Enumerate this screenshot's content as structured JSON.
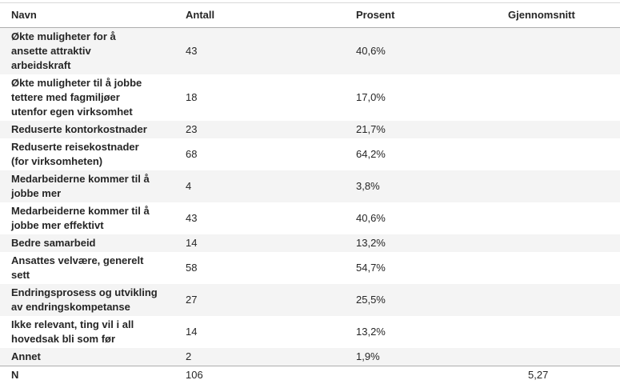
{
  "table": {
    "columns": [
      {
        "key": "navn",
        "label": "Navn"
      },
      {
        "key": "antall",
        "label": "Antall"
      },
      {
        "key": "prosent",
        "label": "Prosent"
      },
      {
        "key": "gjennomsnitt",
        "label": "Gjennomsnitt"
      }
    ],
    "rows": [
      {
        "navn_lines": [
          "Økte muligheter for å",
          "ansette attraktiv",
          "arbeidskraft"
        ],
        "antall": "43",
        "prosent": "40,6%",
        "gjennomsnitt": ""
      },
      {
        "navn_lines": [
          "Økte muligheter til å jobbe",
          "tettere med fagmiljøer",
          "utenfor egen virksomhet"
        ],
        "antall": "18",
        "prosent": "17,0%",
        "gjennomsnitt": ""
      },
      {
        "navn_lines": [
          "Reduserte kontorkostnader"
        ],
        "antall": "23",
        "prosent": "21,7%",
        "gjennomsnitt": ""
      },
      {
        "navn_lines": [
          "Reduserte reisekostnader",
          "(for virksomheten)"
        ],
        "antall": "68",
        "prosent": "64,2%",
        "gjennomsnitt": ""
      },
      {
        "navn_lines": [
          "Medarbeiderne kommer til å",
          "jobbe mer"
        ],
        "antall": "4",
        "prosent": "3,8%",
        "gjennomsnitt": ""
      },
      {
        "navn_lines": [
          "Medarbeiderne kommer til å",
          "jobbe mer effektivt"
        ],
        "antall": "43",
        "prosent": "40,6%",
        "gjennomsnitt": ""
      },
      {
        "navn_lines": [
          "Bedre samarbeid"
        ],
        "antall": "14",
        "prosent": "13,2%",
        "gjennomsnitt": ""
      },
      {
        "navn_lines": [
          "Ansattes velvære, generelt",
          "sett"
        ],
        "antall": "58",
        "prosent": "54,7%",
        "gjennomsnitt": ""
      },
      {
        "navn_lines": [
          "Endringsprosess og utvikling",
          "av endringskompetanse"
        ],
        "antall": "27",
        "prosent": "25,5%",
        "gjennomsnitt": ""
      },
      {
        "navn_lines": [
          "Ikke relevant, ting vil i all",
          "hovedsak bli som før"
        ],
        "antall": "14",
        "prosent": "13,2%",
        "gjennomsnitt": ""
      },
      {
        "navn_lines": [
          "Annet"
        ],
        "antall": "2",
        "prosent": "1,9%",
        "gjennomsnitt": ""
      },
      {
        "navn_lines": [
          "N"
        ],
        "antall": "106",
        "prosent": "",
        "gjennomsnitt": "5,27",
        "is_total": true
      }
    ]
  },
  "colors": {
    "stripe": "#f4f4f4",
    "top_border": "#d9d9d9",
    "header_border": "#adadad",
    "text": "#262626"
  }
}
